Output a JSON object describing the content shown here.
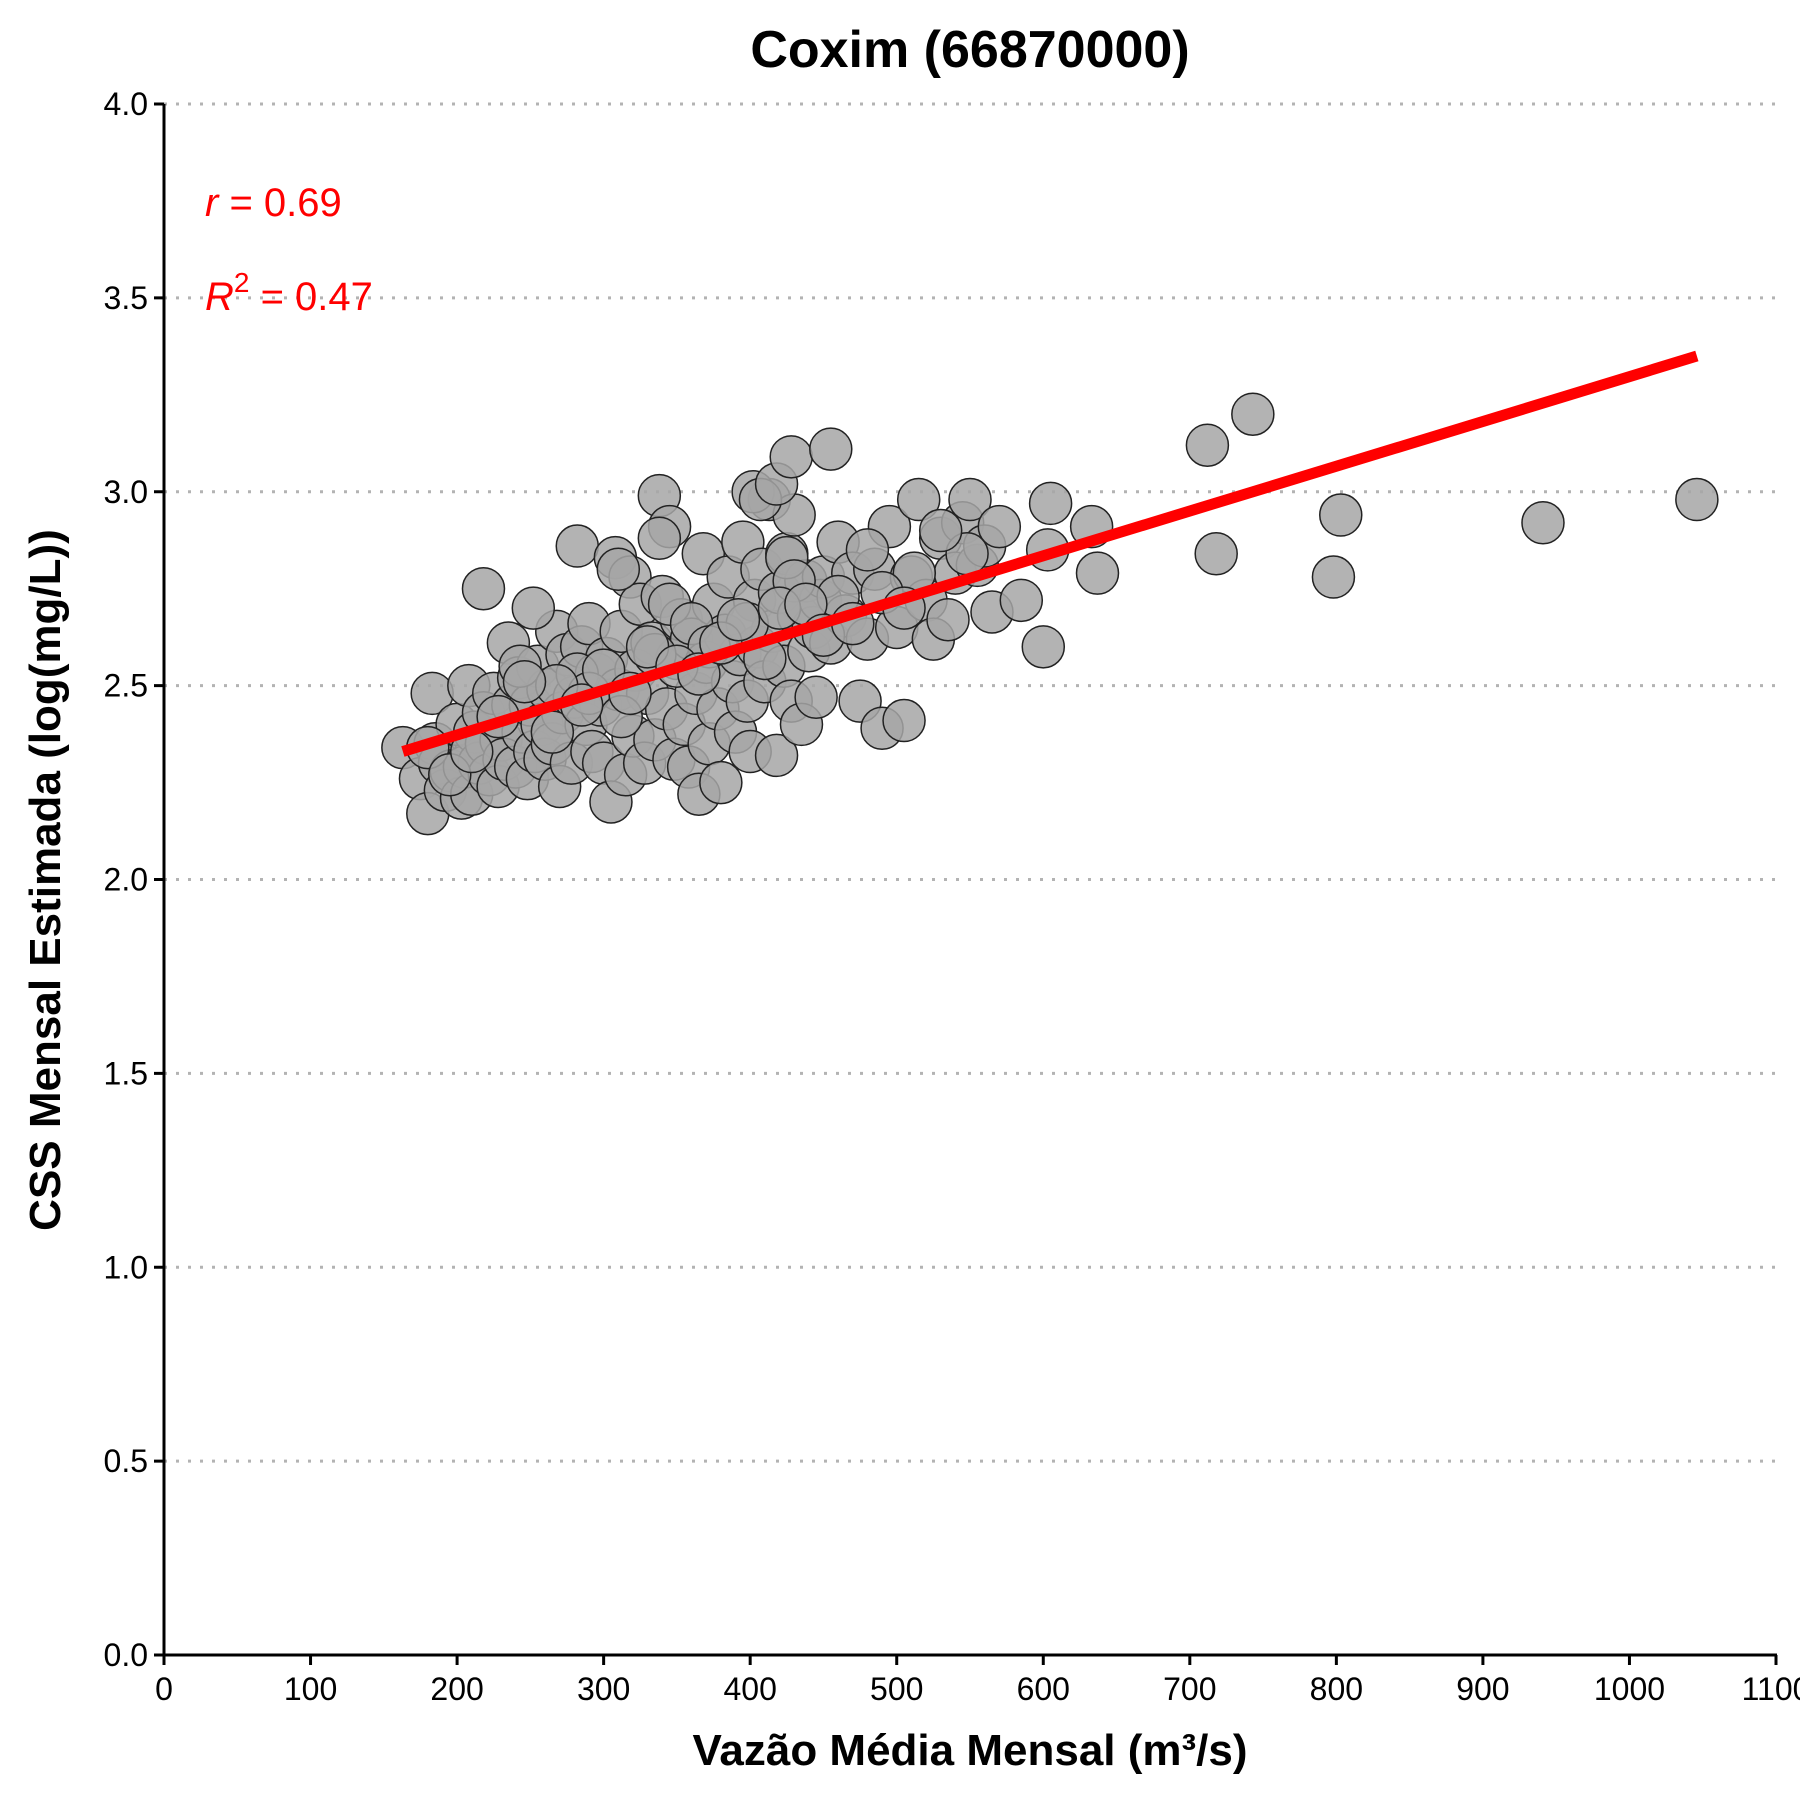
{
  "chart_data": {
    "type": "scatter",
    "title": "Coxim (66870000)",
    "xlabel": "Vazão Média Mensal (m³/s)",
    "ylabel": "CSS Mensal Estimada (log(mg/L))",
    "xlim": [
      0,
      1100
    ],
    "ylim": [
      0,
      4
    ],
    "xticks": [
      0,
      100,
      200,
      300,
      400,
      500,
      600,
      700,
      800,
      900,
      1000,
      1100
    ],
    "yticks": [
      0.0,
      0.5,
      1.0,
      1.5,
      2.0,
      2.5,
      3.0,
      3.5,
      4.0
    ],
    "ytick_labels": [
      "0.0",
      "0.5",
      "1.0",
      "1.5",
      "2.0",
      "2.5",
      "3.0",
      "3.5",
      "4.0"
    ],
    "grid": "horizontal dotted",
    "colors": {
      "point_fill": "#a6a6a6",
      "point_stroke": "#222222",
      "fit_line": "#ff0000",
      "stat_text": "#ff0000"
    },
    "annotations": {
      "r_symbol": "r",
      "r_text": " = 0.69",
      "r2_symbol": "R",
      "r2_exponent": "2",
      "r2_text": " = 0.47"
    },
    "fit_line": {
      "x": [
        163,
        1046
      ],
      "y": [
        2.33,
        3.35
      ]
    },
    "points": {
      "x": [
        163,
        175,
        180,
        183,
        185,
        188,
        192,
        196,
        200,
        203,
        205,
        208,
        210,
        212,
        215,
        218,
        220,
        222,
        225,
        228,
        230,
        232,
        235,
        238,
        240,
        242,
        245,
        248,
        250,
        253,
        255,
        258,
        260,
        262,
        265,
        268,
        270,
        272,
        275,
        278,
        280,
        282,
        285,
        288,
        290,
        292,
        295,
        298,
        300,
        302,
        305,
        308,
        310,
        312,
        315,
        318,
        320,
        322,
        325,
        328,
        330,
        333,
        335,
        338,
        340,
        343,
        345,
        348,
        350,
        353,
        355,
        358,
        360,
        363,
        365,
        368,
        370,
        372,
        375,
        378,
        380,
        383,
        385,
        388,
        390,
        393,
        395,
        398,
        400,
        403,
        405,
        408,
        410,
        413,
        415,
        418,
        420,
        423,
        425,
        428,
        430,
        433,
        435,
        438,
        440,
        443,
        445,
        448,
        450,
        455,
        460,
        465,
        470,
        475,
        480,
        485,
        490,
        495,
        500,
        505,
        510,
        515,
        520,
        525,
        530,
        535,
        540,
        545,
        550,
        555,
        560,
        565,
        570,
        585,
        600,
        603,
        605,
        633,
        637,
        712,
        718,
        743,
        798,
        803,
        941,
        1046,
        218,
        252,
        282,
        310,
        338,
        345,
        402,
        407,
        418,
        425,
        428,
        455,
        243,
        290,
        335,
        360,
        398,
        430,
        460,
        512,
        548,
        268,
        312,
        372,
        420,
        480,
        530,
        180,
        195,
        210,
        228,
        246,
        265,
        285,
        300,
        318,
        330,
        350,
        365,
        380,
        392,
        410,
        438,
        450,
        470,
        490,
        505
      ],
      "y": [
        2.34,
        2.26,
        2.17,
        2.48,
        2.35,
        2.3,
        2.23,
        2.28,
        2.4,
        2.21,
        2.29,
        2.5,
        2.22,
        2.38,
        2.3,
        2.43,
        2.35,
        2.27,
        2.48,
        2.24,
        2.36,
        2.31,
        2.61,
        2.45,
        2.29,
        2.52,
        2.38,
        2.26,
        2.45,
        2.33,
        2.55,
        2.4,
        2.31,
        2.49,
        2.35,
        2.64,
        2.24,
        2.43,
        2.58,
        2.3,
        2.47,
        2.86,
        2.6,
        2.4,
        2.66,
        2.33,
        2.53,
        2.45,
        2.3,
        2.57,
        2.2,
        2.83,
        2.49,
        2.64,
        2.27,
        2.78,
        2.37,
        2.54,
        2.71,
        2.3,
        2.48,
        2.61,
        2.36,
        2.99,
        2.73,
        2.44,
        2.91,
        2.31,
        2.57,
        2.67,
        2.4,
        2.29,
        2.62,
        2.48,
        2.22,
        2.84,
        2.56,
        2.35,
        2.71,
        2.44,
        2.25,
        2.63,
        2.78,
        2.51,
        2.38,
        2.58,
        2.87,
        2.46,
        2.33,
        2.72,
        2.6,
        2.8,
        2.51,
        2.98,
        2.64,
        2.32,
        2.74,
        2.55,
        2.84,
        2.46,
        2.94,
        2.68,
        2.4,
        2.77,
        2.59,
        2.65,
        2.47,
        2.72,
        2.78,
        2.61,
        2.87,
        2.68,
        2.79,
        2.46,
        2.62,
        2.8,
        2.39,
        2.91,
        2.65,
        2.41,
        2.78,
        2.98,
        2.72,
        2.62,
        2.88,
        2.67,
        2.79,
        2.92,
        2.98,
        2.81,
        2.86,
        2.69,
        2.91,
        2.72,
        2.6,
        2.85,
        2.97,
        2.91,
        2.79,
        3.12,
        2.84,
        3.2,
        2.78,
        2.94,
        2.92,
        2.98,
        2.75,
        2.7,
        2.53,
        2.8,
        2.88,
        2.71,
        3.0,
        2.98,
        3.02,
        2.83,
        3.09,
        3.11,
        2.55,
        2.48,
        2.58,
        2.66,
        2.66,
        2.77,
        2.73,
        2.79,
        2.84,
        2.5,
        2.42,
        2.6,
        2.7,
        2.85,
        2.9,
        2.34,
        2.27,
        2.33,
        2.42,
        2.51,
        2.38,
        2.45,
        2.54,
        2.48,
        2.6,
        2.55,
        2.53,
        2.61,
        2.67,
        2.57,
        2.71,
        2.63,
        2.66,
        2.74,
        2.7
      ]
    }
  }
}
